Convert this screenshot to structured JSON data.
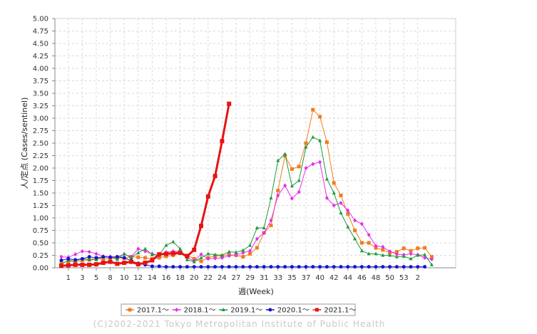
{
  "chart_data": {
    "type": "line",
    "xlabel": "週(Week)",
    "ylabel": "人/定点 (Cases/sentinel)",
    "ylim": [
      0,
      5
    ],
    "yticks": [
      "0.00",
      "0.25",
      "0.50",
      "0.75",
      "1.00",
      "1.25",
      "1.50",
      "1.75",
      "2.00",
      "2.25",
      "2.50",
      "2.75",
      "3.00",
      "3.25",
      "3.50",
      "3.75",
      "4.00",
      "4.25",
      "4.50",
      "4.75",
      "5.00"
    ],
    "xticks": [
      "1",
      "3",
      "5",
      "8",
      "10",
      "12",
      "14",
      "16",
      "18",
      "20",
      "22",
      "24",
      "27",
      "29",
      "31",
      "33",
      "35",
      "37",
      "40",
      "42",
      "44",
      "46",
      "48",
      "50",
      "53",
      "2"
    ],
    "grid": true,
    "legend_position": "bottom",
    "series": [
      {
        "name": "2017.1～",
        "color": "#ef7d1e",
        "marker": "square",
        "values": [
          0.1,
          0.13,
          0.12,
          0.15,
          0.16,
          0.19,
          0.17,
          0.2,
          0.2,
          0.19,
          0.22,
          0.21,
          0.2,
          0.18,
          0.2,
          0.23,
          0.25,
          0.3,
          0.25,
          0.18,
          0.13,
          0.2,
          0.24,
          0.24,
          0.26,
          0.25,
          0.22,
          0.28,
          0.4,
          0.7,
          0.85,
          1.55,
          2.25,
          1.98,
          2.03,
          2.5,
          3.17,
          3.03,
          2.52,
          1.7,
          1.45,
          1.08,
          0.75,
          0.5,
          0.5,
          0.4,
          0.36,
          0.3,
          0.32,
          0.39,
          0.34,
          0.39,
          0.4,
          0.22
        ]
      },
      {
        "name": "2018.1～",
        "color": "#e62ee6",
        "marker": "diamond",
        "values": [
          0.22,
          0.21,
          0.27,
          0.33,
          0.32,
          0.28,
          0.23,
          0.22,
          0.22,
          0.27,
          0.22,
          0.38,
          0.33,
          0.28,
          0.24,
          0.31,
          0.33,
          0.33,
          0.2,
          0.14,
          0.27,
          0.18,
          0.19,
          0.2,
          0.24,
          0.26,
          0.3,
          0.34,
          0.58,
          0.7,
          0.95,
          1.45,
          1.65,
          1.39,
          1.52,
          2.0,
          2.08,
          2.12,
          1.4,
          1.25,
          1.3,
          1.15,
          0.95,
          0.88,
          0.66,
          0.44,
          0.42,
          0.33,
          0.27,
          0.26,
          0.28,
          0.26,
          0.2,
          0.17
        ]
      },
      {
        "name": "2019.1～",
        "color": "#1e9a3c",
        "marker": "triangle",
        "values": [
          0.07,
          0.15,
          0.14,
          0.18,
          0.16,
          0.16,
          0.22,
          0.21,
          0.17,
          0.28,
          0.2,
          0.3,
          0.38,
          0.26,
          0.26,
          0.45,
          0.52,
          0.38,
          0.16,
          0.12,
          0.2,
          0.28,
          0.26,
          0.25,
          0.32,
          0.31,
          0.35,
          0.45,
          0.8,
          0.8,
          1.4,
          2.15,
          2.28,
          1.64,
          1.75,
          2.42,
          2.62,
          2.55,
          1.78,
          1.5,
          1.1,
          0.82,
          0.58,
          0.34,
          0.28,
          0.28,
          0.25,
          0.25,
          0.22,
          0.23,
          0.18,
          0.25,
          0.26,
          0.06
        ]
      },
      {
        "name": "2020.1～",
        "color": "#1414d2",
        "marker": "circle",
        "values": [
          0.15,
          0.18,
          0.16,
          0.18,
          0.22,
          0.2,
          0.22,
          0.21,
          0.22,
          0.2,
          0.14,
          0.09,
          0.06,
          0.03,
          0.03,
          0.02,
          0.02,
          0.02,
          0.02,
          0.02,
          0.02,
          0.02,
          0.02,
          0.02,
          0.02,
          0.02,
          0.02,
          0.02,
          0.02,
          0.02,
          0.02,
          0.02,
          0.02,
          0.02,
          0.02,
          0.02,
          0.02,
          0.02,
          0.02,
          0.02,
          0.02,
          0.02,
          0.02,
          0.02,
          0.02,
          0.02,
          0.02,
          0.02,
          0.02,
          0.02,
          0.02,
          0.02,
          0.02
        ]
      },
      {
        "name": "2021.1～",
        "color": "#e61414",
        "marker": "square",
        "values": [
          0.04,
          0.05,
          0.06,
          0.06,
          0.06,
          0.07,
          0.1,
          0.12,
          0.08,
          0.1,
          0.12,
          0.07,
          0.1,
          0.15,
          0.27,
          0.28,
          0.29,
          0.3,
          0.23,
          0.36,
          0.84,
          1.43,
          1.84,
          2.54,
          3.29
        ]
      }
    ]
  },
  "credit": "(C)2002-2021 Tokyo Metropolitan Institute of Public Health"
}
